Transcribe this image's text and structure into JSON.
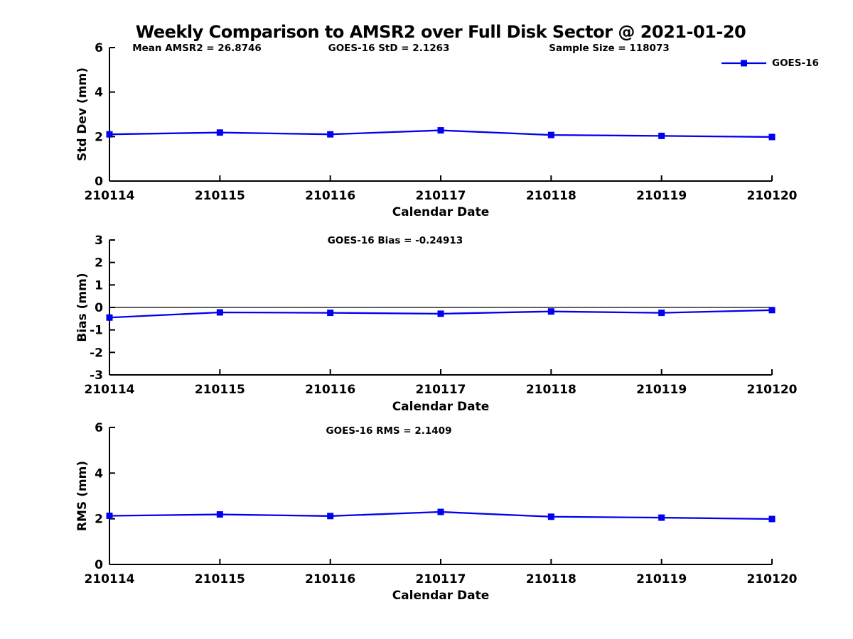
{
  "title": "Weekly Comparison to AMSR2 over Full Disk Sector @ 2021-01-20",
  "colors": {
    "series_line": "#0000EE",
    "axis": "#000000",
    "zero_line": "#000000"
  },
  "legend": {
    "label": "GOES-16",
    "position": "top-right",
    "marker": "filled-square"
  },
  "chart_data": [
    {
      "type": "line",
      "name": "std-dev",
      "annotations": [
        "Mean AMSR2 = 26.8746",
        "GOES-16 StD = 2.1263",
        "Sample Size = 118073"
      ],
      "ylabel": "Std Dev (mm)",
      "xlabel": "Calendar Date",
      "categories": [
        "210114",
        "210115",
        "210116",
        "210117",
        "210118",
        "210119",
        "210120"
      ],
      "ylim": [
        0,
        6
      ],
      "yticks": [
        0,
        2,
        4,
        6
      ],
      "grid": false,
      "show_legend": true,
      "series": [
        {
          "name": "GOES-16",
          "values": [
            2.1,
            2.18,
            2.1,
            2.28,
            2.07,
            2.03,
            1.98
          ]
        }
      ]
    },
    {
      "type": "line",
      "name": "bias",
      "annotations": [
        "GOES-16 Bias  = -0.24913"
      ],
      "ylabel": "Bias (mm)",
      "xlabel": "Calendar Date",
      "categories": [
        "210114",
        "210115",
        "210116",
        "210117",
        "210118",
        "210119",
        "210120"
      ],
      "ylim": [
        -3,
        3
      ],
      "yticks": [
        3,
        2,
        1,
        0,
        -1,
        -2,
        -3
      ],
      "grid": false,
      "zero_line": true,
      "show_legend": false,
      "series": [
        {
          "name": "GOES-16",
          "values": [
            -0.45,
            -0.22,
            -0.24,
            -0.28,
            -0.18,
            -0.24,
            -0.12
          ]
        }
      ]
    },
    {
      "type": "line",
      "name": "rms",
      "annotations": [
        "GOES-16 RMS = 2.1409"
      ],
      "ylabel": "RMS (mm)",
      "xlabel": "Calendar Date",
      "categories": [
        "210114",
        "210115",
        "210116",
        "210117",
        "210118",
        "210119",
        "210120"
      ],
      "ylim": [
        0,
        6
      ],
      "yticks": [
        0,
        2,
        4,
        6
      ],
      "grid": false,
      "show_legend": false,
      "series": [
        {
          "name": "GOES-16",
          "values": [
            2.13,
            2.19,
            2.12,
            2.3,
            2.09,
            2.05,
            1.99
          ]
        }
      ]
    }
  ]
}
